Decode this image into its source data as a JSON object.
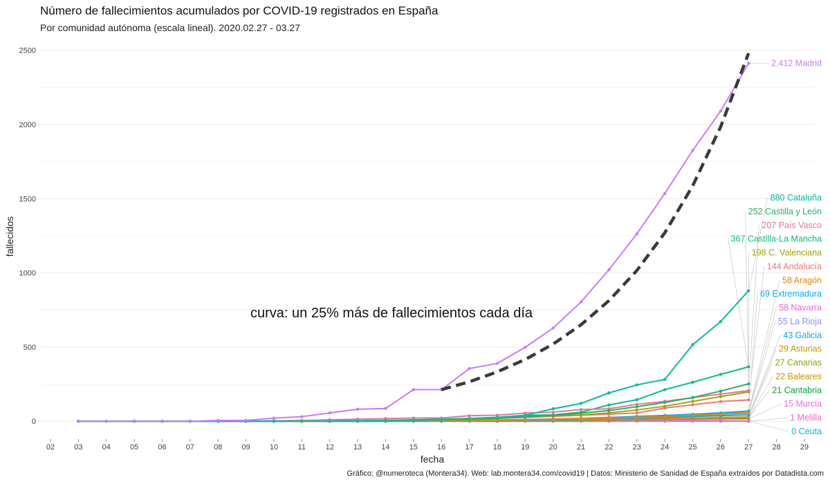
{
  "chart_data": {
    "type": "line",
    "title": "Número de fallecimientos acumulados por COVID-19 registrados en España",
    "subtitle": "Por comunidad autónoma (escala lineal). 2020.02.27 - 03.27",
    "xlabel": "fecha",
    "ylabel": "fallecidos",
    "caption": "Gráfico: @numeroteca (Montera34). Web: lab.montera34.com/covid19 | Datos: Ministerio de Sanidad de España extraídos por Datadista.com",
    "annotation": "curva: un 25% más de fallecimientos cada día",
    "x_ticks": [
      "02",
      "03",
      "04",
      "05",
      "06",
      "07",
      "08",
      "09",
      "10",
      "11",
      "12",
      "13",
      "14",
      "15",
      "16",
      "17",
      "18",
      "19",
      "20",
      "21",
      "22",
      "23",
      "24",
      "25",
      "26",
      "27",
      "28",
      "29"
    ],
    "x_dates": [
      "2020-03-02",
      "2020-03-03",
      "2020-03-04",
      "2020-03-05",
      "2020-03-06",
      "2020-03-07",
      "2020-03-08",
      "2020-03-09",
      "2020-03-10",
      "2020-03-11",
      "2020-03-12",
      "2020-03-13",
      "2020-03-14",
      "2020-03-15",
      "2020-03-16",
      "2020-03-17",
      "2020-03-18",
      "2020-03-19",
      "2020-03-20",
      "2020-03-21",
      "2020-03-22",
      "2020-03-23",
      "2020-03-24",
      "2020-03-25",
      "2020-03-26",
      "2020-03-27",
      "2020-03-28",
      "2020-03-29"
    ],
    "xlim": [
      "2020-03-02",
      "2020-03-29"
    ],
    "ylim": [
      -120,
      2550
    ],
    "y_ticks": [
      0,
      500,
      1000,
      1500,
      2000,
      2500
    ],
    "grid": true,
    "legend": "none",
    "dates": [
      "2020-03-03",
      "2020-03-04",
      "2020-03-05",
      "2020-03-06",
      "2020-03-07",
      "2020-03-08",
      "2020-03-09",
      "2020-03-10",
      "2020-03-11",
      "2020-03-12",
      "2020-03-13",
      "2020-03-14",
      "2020-03-15",
      "2020-03-16",
      "2020-03-17",
      "2020-03-18",
      "2020-03-19",
      "2020-03-20",
      "2020-03-21",
      "2020-03-22",
      "2020-03-23",
      "2020-03-24",
      "2020-03-25",
      "2020-03-26",
      "2020-03-27"
    ],
    "series": [
      {
        "label": "2.412 Madrid",
        "color": "#c77cff",
        "values": [
          0,
          0,
          0,
          0,
          0,
          6,
          6,
          21,
          31,
          56,
          81,
          86,
          213,
          213,
          355,
          390,
          498,
          628,
          804,
          1021,
          1263,
          1535,
          1825,
          2090,
          2412
        ]
      },
      {
        "label": "880 Cataluña",
        "color": "#00bfa0",
        "values": [
          0,
          0,
          0,
          0,
          0,
          0,
          0,
          0,
          1,
          2,
          3,
          5,
          10,
          12,
          12,
          25,
          40,
          84,
          120,
          191,
          245,
          282,
          516,
          672,
          880
        ]
      },
      {
        "label": "252 Castilla y León",
        "color": "#1fb36b",
        "values": [
          0,
          0,
          0,
          0,
          0,
          0,
          0,
          0,
          1,
          1,
          2,
          3,
          5,
          10,
          14,
          20,
          30,
          40,
          55,
          72,
          98,
          127,
          160,
          203,
          252
        ]
      },
      {
        "label": "207 País Vasco",
        "color": "#f0719a",
        "values": [
          0,
          0,
          0,
          0,
          0,
          0,
          1,
          3,
          5,
          10,
          14,
          18,
          22,
          22,
          37,
          41,
          55,
          61,
          79,
          84,
          114,
          134,
          159,
          183,
          207
        ]
      },
      {
        "label": "367 Castilla-La Mancha",
        "color": "#00c08b",
        "values": [
          0,
          0,
          0,
          0,
          0,
          0,
          0,
          1,
          2,
          3,
          4,
          7,
          10,
          14,
          19,
          27,
          40,
          43,
          61,
          110,
          145,
          213,
          263,
          316,
          367
        ]
      },
      {
        "label": "198 C. Valenciana",
        "color": "#a3a500",
        "values": [
          0,
          0,
          0,
          0,
          0,
          0,
          0,
          0,
          0,
          2,
          3,
          4,
          7,
          9,
          14,
          21,
          29,
          36,
          43,
          56,
          76,
          101,
          134,
          166,
          198
        ]
      },
      {
        "label": "144 Andalucía",
        "color": "#f8766d",
        "values": [
          0,
          0,
          0,
          0,
          0,
          0,
          0,
          0,
          1,
          1,
          2,
          3,
          5,
          8,
          14,
          19,
          26,
          33,
          40,
          48,
          56,
          89,
          111,
          133,
          144
        ]
      },
      {
        "label": "58 Aragón",
        "color": "#e58700",
        "values": [
          0,
          0,
          0,
          0,
          0,
          0,
          0,
          0,
          0,
          1,
          1,
          1,
          2,
          3,
          4,
          6,
          9,
          12,
          17,
          21,
          26,
          32,
          40,
          49,
          58
        ]
      },
      {
        "label": "69 Extremadura",
        "color": "#00b0f6",
        "values": [
          0,
          0,
          0,
          0,
          0,
          0,
          0,
          0,
          0,
          0,
          0,
          1,
          2,
          3,
          4,
          6,
          9,
          12,
          17,
          24,
          32,
          39,
          47,
          57,
          69
        ]
      },
      {
        "label": "58 Navarra",
        "color": "#fd61d1",
        "values": [
          0,
          0,
          0,
          0,
          0,
          0,
          0,
          0,
          0,
          0,
          1,
          2,
          3,
          4,
          6,
          9,
          12,
          16,
          20,
          26,
          33,
          39,
          45,
          53,
          58
        ]
      },
      {
        "label": "55 La Rioja",
        "color": "#8494ff",
        "values": [
          0,
          0,
          0,
          0,
          0,
          0,
          0,
          1,
          1,
          1,
          2,
          3,
          4,
          5,
          6,
          8,
          10,
          12,
          14,
          20,
          26,
          33,
          40,
          48,
          55
        ]
      },
      {
        "label": "43 Galicia",
        "color": "#00a9ff",
        "values": [
          0,
          0,
          0,
          0,
          0,
          0,
          0,
          0,
          0,
          0,
          0,
          1,
          1,
          2,
          3,
          4,
          6,
          9,
          13,
          18,
          22,
          27,
          32,
          38,
          43
        ]
      },
      {
        "label": "29 Asturias",
        "color": "#c99800",
        "values": [
          0,
          0,
          0,
          0,
          0,
          0,
          0,
          0,
          1,
          1,
          1,
          2,
          2,
          3,
          4,
          5,
          7,
          9,
          11,
          13,
          15,
          18,
          22,
          26,
          29
        ]
      },
      {
        "label": "27 Canarias",
        "color": "#7cae00",
        "values": [
          0,
          0,
          0,
          0,
          0,
          0,
          0,
          1,
          1,
          1,
          1,
          1,
          2,
          2,
          3,
          3,
          4,
          6,
          8,
          10,
          13,
          16,
          19,
          23,
          27
        ]
      },
      {
        "label": "22 Baleares",
        "color": "#d39200",
        "values": [
          0,
          0,
          0,
          0,
          0,
          0,
          0,
          0,
          0,
          0,
          0,
          0,
          1,
          1,
          2,
          3,
          4,
          6,
          8,
          10,
          12,
          14,
          17,
          20,
          22
        ]
      },
      {
        "label": "21 Cantabria",
        "color": "#00a33b",
        "values": [
          0,
          0,
          0,
          0,
          0,
          0,
          0,
          0,
          0,
          0,
          0,
          0,
          1,
          1,
          2,
          3,
          4,
          5,
          7,
          9,
          11,
          14,
          16,
          19,
          21
        ]
      },
      {
        "label": "15 Murcia",
        "color": "#e76bf3",
        "values": [
          0,
          0,
          0,
          0,
          0,
          0,
          0,
          0,
          0,
          0,
          0,
          0,
          0,
          1,
          1,
          2,
          2,
          3,
          4,
          5,
          7,
          9,
          11,
          13,
          15
        ]
      },
      {
        "label": "1 Melilla",
        "color": "#ff62bc",
        "values": [
          0,
          0,
          0,
          0,
          0,
          0,
          0,
          0,
          0,
          0,
          0,
          0,
          0,
          0,
          0,
          0,
          0,
          0,
          0,
          0,
          1,
          1,
          1,
          1,
          1
        ]
      },
      {
        "label": "0 Ceuta",
        "color": "#00bcd8",
        "values": [
          0,
          0,
          0,
          0,
          0,
          0,
          0,
          0,
          0,
          0,
          0,
          0,
          0,
          0,
          0,
          0,
          0,
          0,
          0,
          0,
          0,
          0,
          0,
          0,
          0
        ]
      }
    ],
    "reference_curve": {
      "color": "#3a3a3a",
      "dates": [
        "2020-03-16",
        "2020-03-17",
        "2020-03-18",
        "2020-03-19",
        "2020-03-20",
        "2020-03-21",
        "2020-03-22",
        "2020-03-23",
        "2020-03-24",
        "2020-03-25",
        "2020-03-26",
        "2020-03-27"
      ],
      "values": [
        213,
        266,
        333,
        416,
        520,
        650,
        813,
        1016,
        1270,
        1587,
        1984,
        2480
      ]
    }
  }
}
